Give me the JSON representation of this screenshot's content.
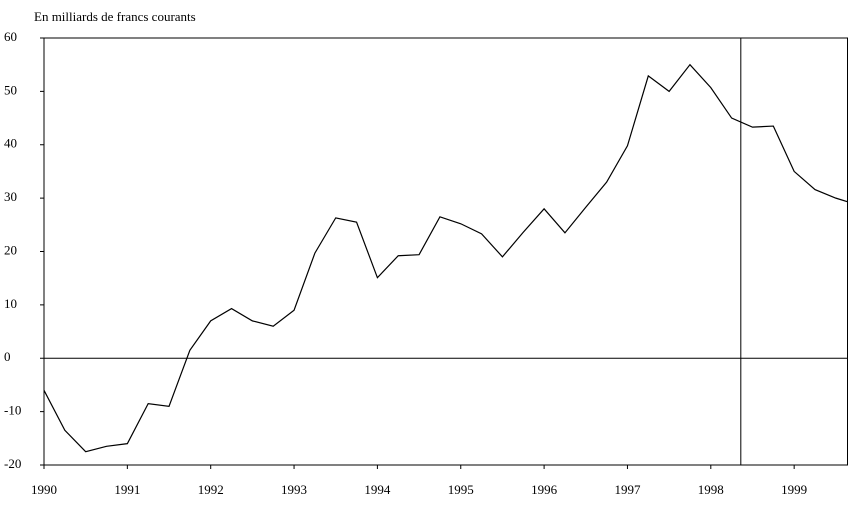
{
  "chart_data": {
    "type": "line",
    "subtitle": "En milliards de francs courants",
    "x": [
      1990,
      1990.25,
      1990.5,
      1990.75,
      1991,
      1991.25,
      1991.5,
      1991.75,
      1992,
      1992.25,
      1992.5,
      1992.75,
      1993,
      1993.25,
      1993.5,
      1993.75,
      1994,
      1994.25,
      1994.5,
      1994.75,
      1995,
      1995.25,
      1995.5,
      1995.75,
      1996,
      1996.25,
      1996.5,
      1996.75,
      1997,
      1997.25,
      1997.5,
      1997.75,
      1998,
      1998.25,
      1998.5,
      1998.75,
      1999,
      1999.25,
      1999.5,
      1999.75
    ],
    "series": [
      {
        "color": "#000000",
        "values": [
          -6,
          -13.5,
          -17.5,
          -16.5,
          -16,
          -8.5,
          -9,
          1.5,
          7,
          9.3,
          7,
          6,
          9,
          19.7,
          26.3,
          25.5,
          15.1,
          19.2,
          19.4,
          26.5,
          25.2,
          23.3,
          19,
          23.6,
          28,
          23.5,
          28.3,
          33,
          39.8,
          52.9,
          50,
          55,
          50.7,
          45,
          43.3,
          43.5,
          35,
          31.6,
          30,
          28.8
        ]
      }
    ],
    "xlim": [
      1990,
      1999.64
    ],
    "xticks": [
      1990,
      1991,
      1992,
      1993,
      1994,
      1995,
      1996,
      1997,
      1998,
      1999
    ],
    "ylim": [
      -20,
      60
    ],
    "yticks": [
      -20,
      -10,
      0,
      10,
      20,
      30,
      40,
      50,
      60
    ],
    "vline": 1998.36,
    "zero_line": true
  }
}
